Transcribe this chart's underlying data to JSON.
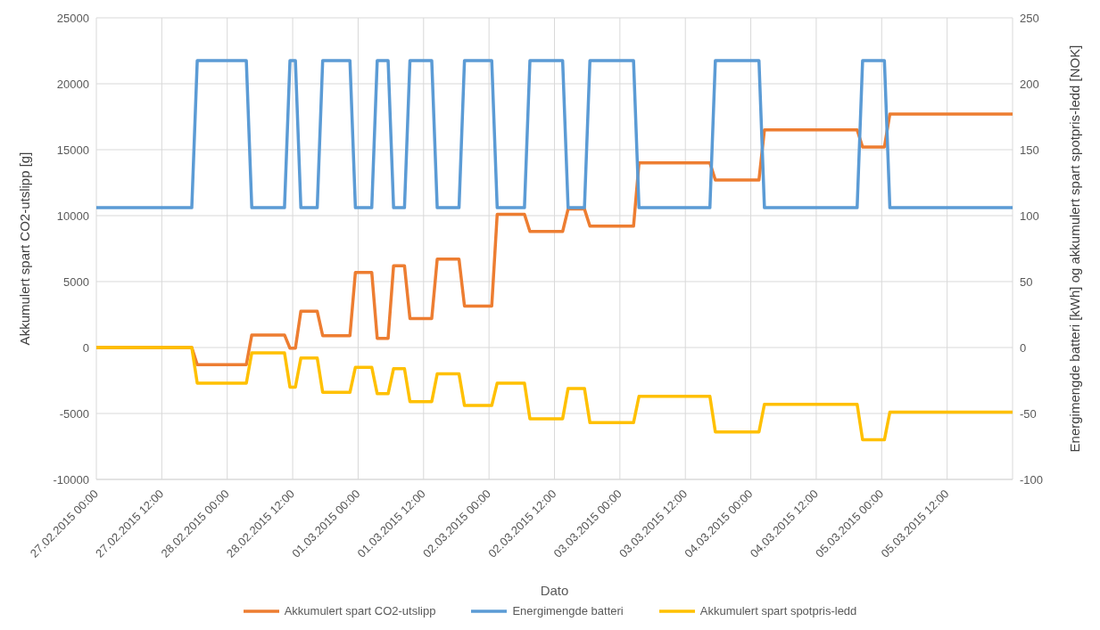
{
  "chart_data": {
    "type": "line",
    "xlabel": "Dato",
    "ylabel": "Akkumulert spart CO2-utslipp [g]",
    "y2label": "Energimengde batteri [kWh] og akkumulert spart spotpris-ledd [NOK]",
    "x": [
      "2015-02-27T00:00",
      "2015-02-27T17:30",
      "2015-02-27T18:30",
      "2015-02-28T03:30",
      "2015-02-28T04:30",
      "2015-02-28T10:30",
      "2015-02-28T11:30",
      "2015-02-28T12:30",
      "2015-02-28T13:30",
      "2015-02-28T16:30",
      "2015-02-28T17:30",
      "2015-02-28T22:30",
      "2015-02-28T23:30",
      "2015-03-01T02:30",
      "2015-03-01T03:30",
      "2015-03-01T05:30",
      "2015-03-01T06:30",
      "2015-03-01T08:30",
      "2015-03-01T09:30",
      "2015-03-01T13:30",
      "2015-03-01T14:30",
      "2015-03-01T18:30",
      "2015-03-01T19:30",
      "2015-03-02T00:30",
      "2015-03-02T01:30",
      "2015-03-02T06:30",
      "2015-03-02T07:30",
      "2015-03-02T13:30",
      "2015-03-02T14:30",
      "2015-03-02T17:30",
      "2015-03-02T18:30",
      "2015-03-03T02:30",
      "2015-03-03T03:30",
      "2015-03-03T16:30",
      "2015-03-03T17:30",
      "2015-03-04T01:30",
      "2015-03-04T02:30",
      "2015-03-04T19:30",
      "2015-03-04T20:30",
      "2015-03-05T00:30",
      "2015-03-05T01:30",
      "2015-03-06T00:00"
    ],
    "series": [
      {
        "name": "Akkumulert spart CO2-utslipp",
        "color": "#ed7d31",
        "values": [
          0,
          0,
          -1300,
          -1300,
          950,
          950,
          -50,
          -50,
          2750,
          2750,
          900,
          900,
          5700,
          5700,
          700,
          700,
          6200,
          6200,
          2200,
          2200,
          6700,
          6700,
          3150,
          3150,
          10100,
          10100,
          8800,
          8800,
          10500,
          10500,
          9200,
          9200,
          14000,
          14000,
          12700,
          12700,
          16500,
          16500,
          15200,
          15200,
          17700,
          17700
        ]
      },
      {
        "name": "Energimengde batteri",
        "color": "#5b9bd5",
        "axis": "y2",
        "values": [
          106,
          106,
          217.5,
          217.5,
          106,
          106,
          217.5,
          217.5,
          106,
          106,
          217.5,
          217.5,
          106,
          106,
          217.5,
          217.5,
          106,
          106,
          217.5,
          217.5,
          106,
          106,
          217.5,
          217.5,
          106,
          106,
          217.5,
          217.5,
          106,
          106,
          217.5,
          217.5,
          106,
          106,
          217.5,
          217.5,
          106,
          106,
          217.5,
          217.5,
          106,
          106
        ]
      },
      {
        "name": "Akkumulert spart spotpris-ledd",
        "color": "#ffc000",
        "axis": "y2",
        "values": [
          0,
          0,
          -27,
          -27,
          -4,
          -4,
          -30,
          -30,
          -8,
          -8,
          -34,
          -34,
          -15,
          -15,
          -35,
          -35,
          -16,
          -16,
          -41,
          -41,
          -20,
          -20,
          -44,
          -44,
          -27,
          -27,
          -54,
          -54,
          -31,
          -31,
          -57,
          -57,
          -37,
          -37,
          -64,
          -64,
          -43,
          -43,
          -70,
          -70,
          -49,
          -49
        ]
      }
    ],
    "xlim": [
      "2015-02-27T00:00",
      "2015-03-06T00:00"
    ],
    "xticks": [
      {
        "value": "2015-02-27T00:00",
        "label": "27.02.2015 00:00"
      },
      {
        "value": "2015-02-27T12:00",
        "label": "27.02.2015 12:00"
      },
      {
        "value": "2015-02-28T00:00",
        "label": "28.02.2015 00:00"
      },
      {
        "value": "2015-02-28T12:00",
        "label": "28.02.2015 12:00"
      },
      {
        "value": "2015-03-01T00:00",
        "label": "01.03.2015 00:00"
      },
      {
        "value": "2015-03-01T12:00",
        "label": "01.03.2015 12:00"
      },
      {
        "value": "2015-03-02T00:00",
        "label": "02.03.2015 00:00"
      },
      {
        "value": "2015-03-02T12:00",
        "label": "02.03.2015 12:00"
      },
      {
        "value": "2015-03-03T00:00",
        "label": "03.03.2015 00:00"
      },
      {
        "value": "2015-03-03T12:00",
        "label": "03.03.2015 12:00"
      },
      {
        "value": "2015-03-04T00:00",
        "label": "04.03.2015 00:00"
      },
      {
        "value": "2015-03-04T12:00",
        "label": "04.03.2015 12:00"
      },
      {
        "value": "2015-03-05T00:00",
        "label": "05.03.2015 00:00"
      },
      {
        "value": "2015-03-05T12:00",
        "label": "05.03.2015 12:00"
      },
      {
        "value": "2015-03-06T00:00",
        "label": null
      }
    ],
    "ylim": [
      -10000,
      25000
    ],
    "yticks": [
      -10000,
      -5000,
      0,
      5000,
      10000,
      15000,
      20000,
      25000
    ],
    "y2lim": [
      -100,
      250
    ],
    "y2ticks": [
      -100,
      -50,
      0,
      50,
      100,
      150,
      200,
      250
    ],
    "grid": true,
    "legend": "bottom",
    "line_style": "solid"
  }
}
